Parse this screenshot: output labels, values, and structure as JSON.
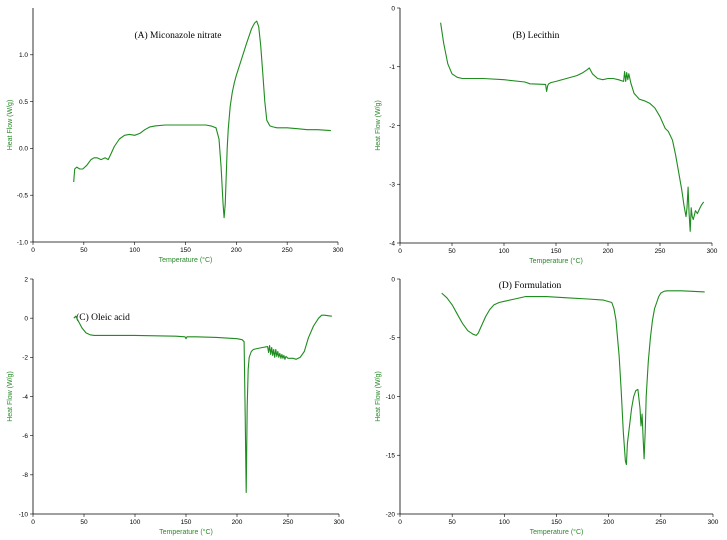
{
  "chart_data": [
    {
      "type": "line",
      "title": "(A) Miconazole nitrate",
      "xlabel": "Temperature (°C)",
      "ylabel": "Heat Flow (W/g)",
      "xlim": [
        0,
        300
      ],
      "ylim": [
        -1.0,
        1.5
      ],
      "x_ticks": [
        "0",
        "50",
        "100",
        "150",
        "200",
        "250",
        "300"
      ],
      "y_ticks": [
        "-1.0",
        "-0.5",
        "0.0",
        "0.5",
        "1.0"
      ],
      "series": [
        {
          "x": [
            40,
            41,
            43,
            46,
            49,
            53,
            57,
            60,
            63,
            67,
            71,
            74,
            77,
            80,
            85,
            90,
            95,
            100,
            105,
            110,
            115,
            120,
            130,
            140,
            150,
            160,
            170,
            175,
            180,
            183,
            185,
            187,
            188,
            189,
            190,
            191,
            192,
            194,
            196,
            198,
            200,
            205,
            210,
            215,
            218,
            220,
            222,
            224,
            226,
            228,
            230,
            233,
            236,
            240,
            250,
            260,
            270,
            280,
            293
          ],
          "y": [
            -0.36,
            -0.22,
            -0.2,
            -0.22,
            -0.22,
            -0.18,
            -0.12,
            -0.1,
            -0.1,
            -0.12,
            -0.1,
            -0.12,
            -0.05,
            0.02,
            0.1,
            0.14,
            0.15,
            0.14,
            0.16,
            0.2,
            0.23,
            0.24,
            0.25,
            0.25,
            0.25,
            0.25,
            0.25,
            0.24,
            0.22,
            0.1,
            -0.2,
            -0.6,
            -0.74,
            -0.6,
            -0.3,
            0.0,
            0.2,
            0.45,
            0.6,
            0.7,
            0.78,
            0.95,
            1.12,
            1.28,
            1.34,
            1.36,
            1.3,
            1.1,
            0.8,
            0.5,
            0.3,
            0.24,
            0.23,
            0.22,
            0.22,
            0.21,
            0.2,
            0.2,
            0.19
          ]
        }
      ]
    },
    {
      "type": "line",
      "title": "(B) Lecithin",
      "xlabel": "Temperature (°C)",
      "ylabel": "Heat Flow (W/g)",
      "xlim": [
        0,
        300
      ],
      "ylim": [
        -4,
        0
      ],
      "x_ticks": [
        "0",
        "50",
        "100",
        "150",
        "200",
        "250",
        "300"
      ],
      "y_ticks": [
        "-4",
        "-3",
        "-2",
        "-1",
        "0"
      ],
      "series": [
        {
          "x": [
            39,
            42,
            46,
            50,
            55,
            60,
            70,
            80,
            100,
            120,
            125,
            140,
            141,
            142,
            143,
            145,
            150,
            160,
            170,
            176,
            180,
            182,
            185,
            190,
            195,
            200,
            205,
            210,
            215,
            216,
            217,
            218,
            219,
            220,
            222,
            225,
            230,
            235,
            240,
            245,
            250,
            255,
            258,
            262,
            265,
            268,
            271,
            273,
            275,
            276,
            277,
            278,
            279,
            280,
            281,
            282,
            284,
            286,
            288,
            290,
            292
          ],
          "y": [
            -0.25,
            -0.6,
            -0.95,
            -1.12,
            -1.18,
            -1.2,
            -1.2,
            -1.2,
            -1.22,
            -1.26,
            -1.29,
            -1.3,
            -1.42,
            -1.32,
            -1.29,
            -1.27,
            -1.25,
            -1.2,
            -1.15,
            -1.1,
            -1.05,
            -1.02,
            -1.12,
            -1.2,
            -1.22,
            -1.2,
            -1.2,
            -1.22,
            -1.25,
            -1.08,
            -1.25,
            -1.1,
            -1.22,
            -1.12,
            -1.28,
            -1.45,
            -1.55,
            -1.58,
            -1.62,
            -1.7,
            -1.85,
            -2.05,
            -2.1,
            -2.25,
            -2.5,
            -2.8,
            -3.1,
            -3.35,
            -3.55,
            -3.4,
            -3.05,
            -3.5,
            -3.8,
            -3.4,
            -3.55,
            -3.6,
            -3.45,
            -3.5,
            -3.42,
            -3.35,
            -3.3
          ]
        }
      ]
    },
    {
      "type": "line",
      "title": "(C) Oleic acid",
      "xlabel": "Temperature (°C)",
      "ylabel": "Heat Flow (W/g)",
      "xlim": [
        0,
        300
      ],
      "ylim": [
        -10,
        2
      ],
      "x_ticks": [
        "0",
        "50",
        "100",
        "150",
        "200",
        "250",
        "300"
      ],
      "y_ticks": [
        "-10",
        "-8",
        "-6",
        "-4",
        "-2",
        "0",
        "2"
      ],
      "series": [
        {
          "x": [
            40,
            42,
            45,
            48,
            52,
            56,
            60,
            70,
            80,
            100,
            120,
            140,
            149,
            150,
            151,
            160,
            180,
            200,
            205,
            207,
            208,
            209,
            210,
            211,
            212,
            214,
            216,
            220,
            225,
            230,
            231,
            232,
            233,
            234,
            235,
            236,
            237,
            238,
            239,
            240,
            241,
            242,
            243,
            244,
            245,
            246,
            247,
            248,
            250,
            255,
            258,
            262,
            266,
            270,
            275,
            280,
            283,
            286,
            290,
            293
          ],
          "y": [
            0.0,
            0.1,
            -0.2,
            -0.5,
            -0.75,
            -0.85,
            -0.88,
            -0.88,
            -0.88,
            -0.88,
            -0.9,
            -0.92,
            -0.95,
            -1.05,
            -0.95,
            -0.95,
            -0.98,
            -1.05,
            -1.1,
            -1.2,
            -5.0,
            -8.9,
            -4.5,
            -2.6,
            -2.0,
            -1.7,
            -1.6,
            -1.55,
            -1.5,
            -1.45,
            -1.75,
            -1.4,
            -1.85,
            -1.5,
            -1.9,
            -1.6,
            -2.0,
            -1.6,
            -1.95,
            -1.7,
            -2.0,
            -1.8,
            -2.05,
            -1.85,
            -2.05,
            -1.9,
            -2.1,
            -1.95,
            -2.05,
            -2.05,
            -2.1,
            -2.0,
            -1.7,
            -1.0,
            -0.4,
            0.0,
            0.15,
            0.15,
            0.12,
            0.1
          ]
        }
      ]
    },
    {
      "type": "line",
      "title": "(D) Formulation",
      "xlabel": "Temperature (°C)",
      "ylabel": "Heat Flow (W/g)",
      "xlim": [
        0,
        300
      ],
      "ylim": [
        -20,
        0
      ],
      "x_ticks": [
        "0",
        "50",
        "100",
        "150",
        "200",
        "250",
        "300"
      ],
      "y_ticks": [
        "-20",
        "-15",
        "-10",
        "-5",
        "0"
      ],
      "series": [
        {
          "x": [
            40,
            45,
            50,
            55,
            60,
            65,
            70,
            73,
            75,
            78,
            82,
            86,
            90,
            95,
            100,
            110,
            120,
            140,
            160,
            180,
            195,
            203,
            205,
            207,
            208,
            210,
            212,
            214,
            216,
            217,
            218,
            220,
            222,
            224,
            226,
            228,
            230,
            231,
            232,
            233,
            234,
            235,
            236,
            238,
            240,
            242,
            244,
            246,
            248,
            250,
            253,
            256,
            260,
            270,
            280,
            292
          ],
          "y": [
            -1.2,
            -1.6,
            -2.2,
            -3.0,
            -3.8,
            -4.4,
            -4.7,
            -4.8,
            -4.6,
            -4.0,
            -3.2,
            -2.6,
            -2.2,
            -2.0,
            -1.9,
            -1.7,
            -1.5,
            -1.5,
            -1.6,
            -1.7,
            -1.8,
            -2.0,
            -2.5,
            -3.5,
            -4.5,
            -6.5,
            -9.5,
            -13.0,
            -15.5,
            -15.8,
            -14.0,
            -12.5,
            -11.0,
            -10.0,
            -9.5,
            -9.4,
            -11.0,
            -12.5,
            -11.5,
            -13.5,
            -15.3,
            -13.0,
            -10.0,
            -7.0,
            -5.0,
            -3.5,
            -2.5,
            -2.0,
            -1.5,
            -1.2,
            -1.05,
            -1.0,
            -1.0,
            -1.0,
            -1.05,
            -1.1
          ]
        }
      ]
    }
  ]
}
